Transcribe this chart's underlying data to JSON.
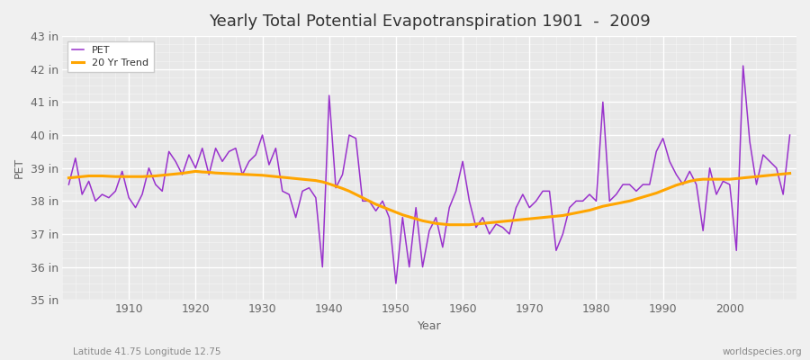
{
  "title": "Yearly Total Potential Evapotranspiration 1901  -  2009",
  "xlabel": "Year",
  "ylabel": "PET",
  "years": [
    1901,
    1902,
    1903,
    1904,
    1905,
    1906,
    1907,
    1908,
    1909,
    1910,
    1911,
    1912,
    1913,
    1914,
    1915,
    1916,
    1917,
    1918,
    1919,
    1920,
    1921,
    1922,
    1923,
    1924,
    1925,
    1926,
    1927,
    1928,
    1929,
    1930,
    1931,
    1932,
    1933,
    1934,
    1935,
    1936,
    1937,
    1938,
    1939,
    1940,
    1941,
    1942,
    1943,
    1944,
    1945,
    1946,
    1947,
    1948,
    1949,
    1950,
    1951,
    1952,
    1953,
    1954,
    1955,
    1956,
    1957,
    1958,
    1959,
    1960,
    1961,
    1962,
    1963,
    1964,
    1965,
    1966,
    1967,
    1968,
    1969,
    1970,
    1971,
    1972,
    1973,
    1974,
    1975,
    1976,
    1977,
    1978,
    1979,
    1980,
    1981,
    1982,
    1983,
    1984,
    1985,
    1986,
    1987,
    1988,
    1989,
    1990,
    1991,
    1992,
    1993,
    1994,
    1995,
    1996,
    1997,
    1998,
    1999,
    2000,
    2001,
    2002,
    2003,
    2004,
    2005,
    2006,
    2007,
    2008,
    2009
  ],
  "pet": [
    38.5,
    39.3,
    38.2,
    38.6,
    38.0,
    38.2,
    38.1,
    38.3,
    38.9,
    38.1,
    37.8,
    38.2,
    39.0,
    38.5,
    38.3,
    39.5,
    39.2,
    38.8,
    39.4,
    39.0,
    39.6,
    38.8,
    39.6,
    39.2,
    39.5,
    39.6,
    38.8,
    39.2,
    39.4,
    40.0,
    39.1,
    39.6,
    38.3,
    38.2,
    37.5,
    38.3,
    38.4,
    38.1,
    36.0,
    41.2,
    38.4,
    38.8,
    40.0,
    39.9,
    38.0,
    38.0,
    37.7,
    38.0,
    37.5,
    35.5,
    37.5,
    36.0,
    37.8,
    36.0,
    37.1,
    37.5,
    36.6,
    37.8,
    38.3,
    39.2,
    38.0,
    37.2,
    37.5,
    37.0,
    37.3,
    37.2,
    37.0,
    37.8,
    38.2,
    37.8,
    38.0,
    38.3,
    38.3,
    36.5,
    37.0,
    37.8,
    38.0,
    38.0,
    38.2,
    38.0,
    41.0,
    38.0,
    38.2,
    38.5,
    38.5,
    38.3,
    38.5,
    38.5,
    39.5,
    39.9,
    39.2,
    38.8,
    38.5,
    38.9,
    38.5,
    37.1,
    39.0,
    38.2,
    38.6,
    38.5,
    36.5,
    42.1,
    39.8,
    38.5,
    39.4,
    39.2,
    39.0,
    38.2,
    40.0
  ],
  "trend": [
    38.7,
    38.72,
    38.74,
    38.76,
    38.76,
    38.76,
    38.75,
    38.74,
    38.74,
    38.74,
    38.74,
    38.74,
    38.75,
    38.76,
    38.78,
    38.8,
    38.82,
    38.84,
    38.87,
    38.9,
    38.88,
    38.87,
    38.85,
    38.84,
    38.83,
    38.82,
    38.81,
    38.8,
    38.79,
    38.78,
    38.76,
    38.74,
    38.72,
    38.7,
    38.68,
    38.66,
    38.64,
    38.62,
    38.58,
    38.52,
    38.45,
    38.38,
    38.3,
    38.2,
    38.1,
    38.0,
    37.9,
    37.82,
    37.74,
    37.66,
    37.58,
    37.52,
    37.46,
    37.4,
    37.36,
    37.32,
    37.3,
    37.28,
    37.28,
    37.28,
    37.28,
    37.3,
    37.32,
    37.34,
    37.36,
    37.38,
    37.4,
    37.42,
    37.44,
    37.46,
    37.48,
    37.5,
    37.52,
    37.54,
    37.56,
    37.6,
    37.64,
    37.68,
    37.72,
    37.78,
    37.84,
    37.88,
    37.92,
    37.96,
    38.0,
    38.06,
    38.12,
    38.18,
    38.24,
    38.32,
    38.4,
    38.48,
    38.54,
    38.6,
    38.64,
    38.66,
    38.66,
    38.66,
    38.66,
    38.66,
    38.68,
    38.7,
    38.72,
    38.74,
    38.76,
    38.78,
    38.8,
    38.82,
    38.84
  ],
  "pet_color": "#9932CC",
  "trend_color": "#FFA500",
  "fig_facecolor": "#F0F0F0",
  "plot_facecolor": "#E8E8E8",
  "grid_major_color": "#FFFFFF",
  "grid_minor_color": "#FFFFFF",
  "ylim": [
    35,
    43
  ],
  "ytick_values": [
    35,
    36,
    37,
    38,
    39,
    40,
    41,
    42,
    43
  ],
  "ytick_labels": [
    "35 in",
    "36 in",
    "37 in",
    "38 in",
    "39 in",
    "40 in",
    "41 in",
    "42 in",
    "43 in"
  ],
  "xtick_values": [
    1910,
    1920,
    1930,
    1940,
    1950,
    1960,
    1970,
    1980,
    1990,
    2000
  ],
  "xlim_left": 1900,
  "xlim_right": 2010,
  "footnote_left": "Latitude 41.75 Longitude 12.75",
  "footnote_right": "worldspecies.org",
  "legend_labels": [
    "PET",
    "20 Yr Trend"
  ],
  "title_fontsize": 13,
  "axis_label_fontsize": 9,
  "tick_fontsize": 9,
  "legend_fontsize": 8
}
